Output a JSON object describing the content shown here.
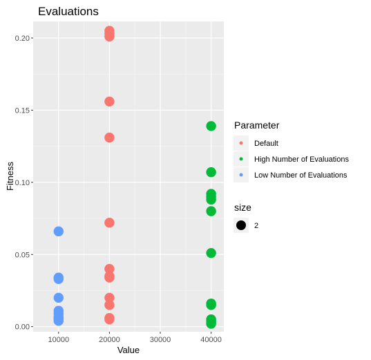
{
  "chart_data": {
    "type": "scatter",
    "title": "Evaluations",
    "xlabel": "Value",
    "ylabel": "Fitness",
    "xlim": [
      5000,
      42500
    ],
    "ylim": [
      -0.0035,
      0.2115
    ],
    "x_ticks": [
      10000,
      20000,
      30000,
      40000
    ],
    "x_tick_labels": [
      "10000",
      "20000",
      "30000",
      "40000"
    ],
    "y_ticks": [
      0.0,
      0.05,
      0.1,
      0.15,
      0.2
    ],
    "y_tick_labels": [
      "0.00",
      "0.05",
      "0.10",
      "0.15",
      "0.20"
    ],
    "grid": true,
    "legend_position": "right",
    "legend": {
      "color_title": "Parameter",
      "size_title": "size",
      "size_label": "2"
    },
    "series": [
      {
        "name": "Default",
        "color": "#F8766D",
        "x": [
          20000,
          20000,
          20000,
          20000,
          20000,
          20000,
          20000,
          20000,
          20000,
          20000,
          20000,
          20000,
          20000
        ],
        "y": [
          0.205,
          0.203,
          0.201,
          0.156,
          0.131,
          0.072,
          0.04,
          0.035,
          0.034,
          0.02,
          0.015,
          0.006,
          0.005
        ]
      },
      {
        "name": "High Number of Evaluations",
        "color": "#00BA38",
        "x": [
          40000,
          40000,
          40000,
          40000,
          40000,
          40000,
          40000,
          40000,
          40000,
          40000,
          40000,
          40000,
          40000
        ],
        "y": [
          0.139,
          0.107,
          0.092,
          0.09,
          0.088,
          0.08,
          0.051,
          0.016,
          0.015,
          0.005,
          0.004,
          0.003,
          0.002
        ]
      },
      {
        "name": "Low Number of Evaluations",
        "color": "#619CFF",
        "x": [
          10000,
          10000,
          10000,
          10000,
          10000,
          10000,
          10000,
          10000,
          10000,
          10000
        ],
        "y": [
          0.066,
          0.034,
          0.033,
          0.02,
          0.011,
          0.009,
          0.007,
          0.006,
          0.005,
          0.004
        ]
      }
    ]
  }
}
